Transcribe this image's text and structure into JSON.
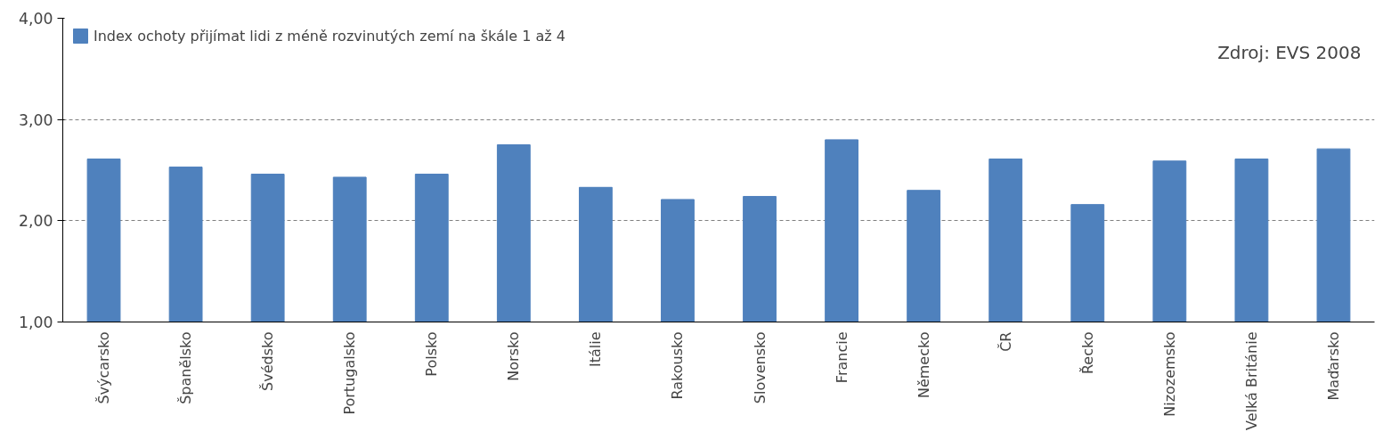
{
  "chart_data": {
    "type": "bar",
    "categories": [
      "Švýcarsko",
      "Španělsko",
      "Švédsko",
      "Portugalsko",
      "Polsko",
      "Norsko",
      "Itálie",
      "Rakousko",
      "Slovensko",
      "Francie",
      "Německo",
      "ČR",
      "Řecko",
      "Nizozemsko",
      "Velká Británie",
      "Maďarsko"
    ],
    "series": [
      {
        "name": "Index ochoty přijímat lidi z méně rozvinutých zemí na škále 1 až 4",
        "color": "#4f81bd",
        "values": [
          2.61,
          2.53,
          2.46,
          2.43,
          2.46,
          2.75,
          2.33,
          2.21,
          2.24,
          2.8,
          2.3,
          2.61,
          2.16,
          2.59,
          2.61,
          2.71
        ]
      }
    ],
    "ylim": [
      1,
      4
    ],
    "yticks": [
      {
        "value": 1,
        "label": "1,00"
      },
      {
        "value": 2,
        "label": "2,00"
      },
      {
        "value": 3,
        "label": "3,00"
      },
      {
        "value": 4,
        "label": "4,00"
      }
    ],
    "grid": "y",
    "legend": "top left",
    "annotations": [
      "Zdroj: EVS 2008"
    ]
  }
}
